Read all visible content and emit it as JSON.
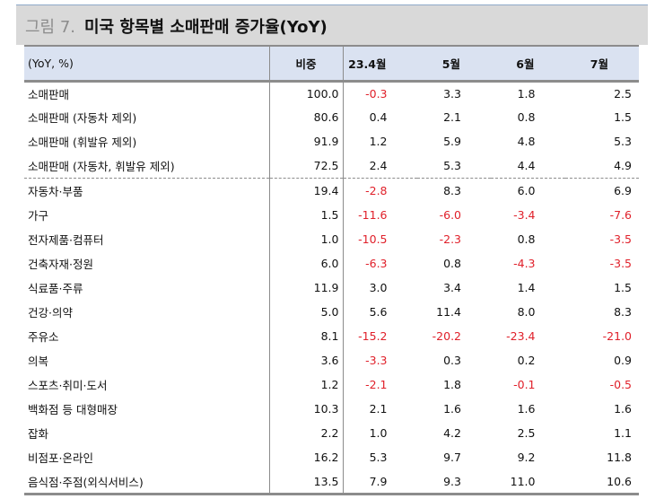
{
  "title": {
    "figure_label": "그림 7.",
    "text": "미국 항목별 소매판매 증가율(YoY)"
  },
  "table": {
    "headers": [
      "(YoY, %)",
      "비중",
      "23.4월",
      "5월",
      "6월",
      "7월"
    ],
    "rows": [
      {
        "label": "소매판매",
        "weight": "100.0",
        "values": [
          "-0.3",
          "3.3",
          "1.8",
          "2.5"
        ]
      },
      {
        "label": "소매판매 (자동차 제외)",
        "weight": "80.6",
        "values": [
          "0.4",
          "2.1",
          "0.8",
          "1.5"
        ]
      },
      {
        "label": "소매판매 (휘발유 제외)",
        "weight": "91.9",
        "values": [
          "1.2",
          "5.9",
          "4.8",
          "5.3"
        ]
      },
      {
        "label": "소매판매 (자동차, 휘발유 제외)",
        "weight": "72.5",
        "values": [
          "2.4",
          "5.3",
          "4.4",
          "4.9"
        ]
      },
      {
        "label": "자동차·부품",
        "weight": "19.4",
        "values": [
          "-2.8",
          "8.3",
          "6.0",
          "6.9"
        ]
      },
      {
        "label": "가구",
        "weight": "1.5",
        "values": [
          "-11.6",
          "-6.0",
          "-3.4",
          "-7.6"
        ]
      },
      {
        "label": "전자제품·컴퓨터",
        "weight": "1.0",
        "values": [
          "-10.5",
          "-2.3",
          "0.8",
          "-3.5"
        ]
      },
      {
        "label": "건축자재·정원",
        "weight": "6.0",
        "values": [
          "-6.3",
          "0.8",
          "-4.3",
          "-3.5"
        ]
      },
      {
        "label": "식료품·주류",
        "weight": "11.9",
        "values": [
          "3.0",
          "3.4",
          "1.4",
          "1.5"
        ]
      },
      {
        "label": "건강·의약",
        "weight": "5.0",
        "values": [
          "5.6",
          "11.4",
          "8.0",
          "8.3"
        ]
      },
      {
        "label": "주유소",
        "weight": "8.1",
        "values": [
          "-15.2",
          "-20.2",
          "-23.4",
          "-21.0"
        ]
      },
      {
        "label": "의복",
        "weight": "3.6",
        "values": [
          "-3.3",
          "0.3",
          "0.2",
          "0.9"
        ]
      },
      {
        "label": "스포츠·취미·도서",
        "weight": "1.2",
        "values": [
          "-2.1",
          "1.8",
          "-0.1",
          "-0.5"
        ]
      },
      {
        "label": "백화점 등 대형매장",
        "weight": "10.3",
        "values": [
          "2.1",
          "1.6",
          "1.6",
          "1.6"
        ]
      },
      {
        "label": "잡화",
        "weight": "2.2",
        "values": [
          "1.0",
          "4.2",
          "2.5",
          "1.1"
        ]
      },
      {
        "label": "비점포·온라인",
        "weight": "16.2",
        "values": [
          "5.3",
          "9.7",
          "9.2",
          "11.8"
        ]
      },
      {
        "label": "음식점·주점(외식서비스)",
        "weight": "13.5",
        "values": [
          "7.9",
          "9.3",
          "11.0",
          "10.6"
        ]
      }
    ]
  },
  "colors": {
    "negative": "#e0202a",
    "header_bg": "#dae2f1",
    "title_bg": "#d9d9d9"
  }
}
